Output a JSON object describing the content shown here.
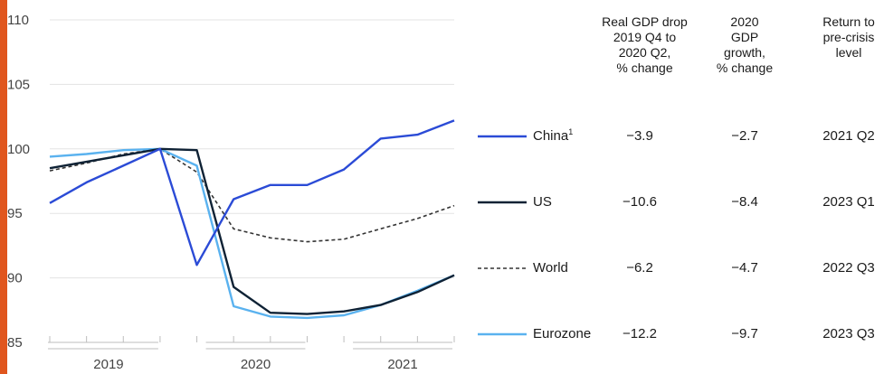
{
  "accent_color": "#e0561e",
  "chart_data": {
    "type": "line",
    "x": [
      "2019 Q1",
      "2019 Q2",
      "2019 Q3",
      "2019 Q4",
      "2020 Q1",
      "2020 Q2",
      "2020 Q3",
      "2020 Q4",
      "2021 Q1",
      "2021 Q2",
      "2021 Q3",
      "2021 Q4"
    ],
    "x_groups": [
      "2019",
      "2020",
      "2021"
    ],
    "yticks": [
      85,
      90,
      95,
      100,
      105,
      110
    ],
    "ylim": [
      85,
      110
    ],
    "grid": true,
    "series": [
      {
        "name": "China",
        "footnote": "1",
        "color": "#2b4bd6",
        "dash": false,
        "values": [
          95.8,
          97.4,
          98.7,
          100.0,
          91.0,
          96.1,
          97.2,
          97.2,
          98.4,
          100.8,
          101.1,
          102.2
        ],
        "gdp_drop": "−3.9",
        "growth_2020": "−2.7",
        "return": "2021 Q2"
      },
      {
        "name": "US",
        "color": "#0f2235",
        "dash": false,
        "values": [
          98.5,
          99.0,
          99.5,
          100.0,
          99.9,
          89.3,
          87.3,
          87.2,
          87.4,
          87.9,
          88.9,
          90.2
        ],
        "gdp_drop": "−10.6",
        "growth_2020": "−8.4",
        "return": "2023 Q1"
      },
      {
        "name": "World",
        "color": "#333333",
        "dash": true,
        "values": [
          98.3,
          98.9,
          99.6,
          100.0,
          98.2,
          93.8,
          93.1,
          92.8,
          93.0,
          93.8,
          94.6,
          95.6
        ],
        "gdp_drop": "−6.2",
        "growth_2020": "−4.7",
        "return": "2022 Q3"
      },
      {
        "name": "Eurozone",
        "color": "#5ab2ef",
        "dash": false,
        "values": [
          99.4,
          99.6,
          99.9,
          100.0,
          98.7,
          87.8,
          87.0,
          86.9,
          87.1,
          87.9,
          89.0,
          90.2
        ],
        "gdp_drop": "−12.2",
        "growth_2020": "−9.7",
        "return": "2023 Q3"
      }
    ],
    "table_headers": {
      "drop": "Real GDP drop\n2019 Q4 to\n2020 Q2,\n% change",
      "growth": "2020\nGDP\ngrowth,\n% change",
      "return": "Return to\npre-crisis\nlevel"
    }
  }
}
